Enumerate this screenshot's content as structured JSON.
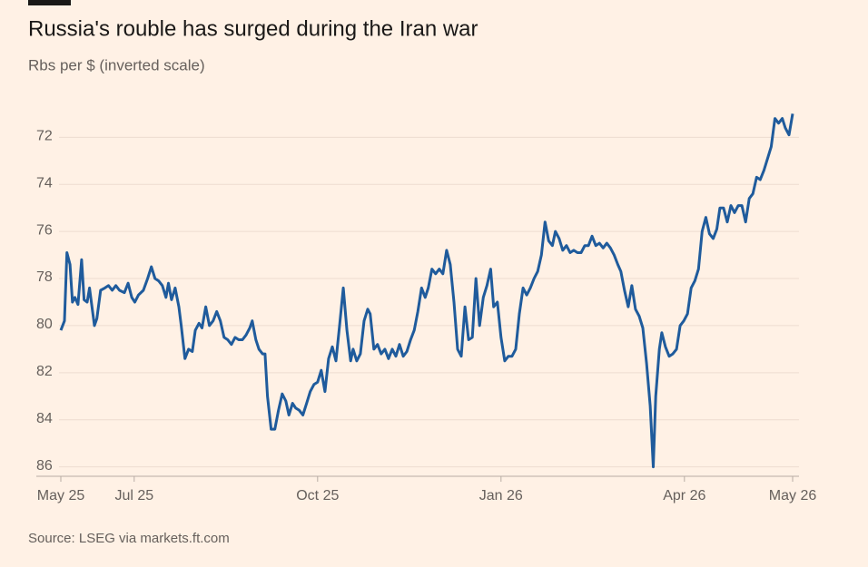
{
  "chart_data": {
    "type": "line",
    "title": "Russia's rouble has surged during the Iran war",
    "subtitle": "Rbs per $ (inverted scale)",
    "source": "Source: LSEG via markets.ft.com",
    "inverted_y": true,
    "ylim": [
      70.6,
      86.4
    ],
    "yticks": [
      72,
      74,
      76,
      78,
      80,
      82,
      84,
      86
    ],
    "xlim": [
      0.8,
      12.77
    ],
    "xticks": [
      {
        "value": 0.8,
        "label": "May 25"
      },
      {
        "value": 2,
        "label": "Jul 25"
      },
      {
        "value": 5,
        "label": "Oct 25"
      },
      {
        "value": 8,
        "label": "Jan 26"
      },
      {
        "value": 11,
        "label": "Apr 26"
      },
      {
        "value": 12.77,
        "label": "May 26"
      }
    ],
    "grid": true,
    "series": [
      {
        "name": "Rbs per $",
        "color": "#1f5b9c",
        "x": [
          0.8,
          0.86,
          0.9,
          0.95,
          0.99,
          1.03,
          1.08,
          1.14,
          1.18,
          1.23,
          1.27,
          1.35,
          1.39,
          1.45,
          1.52,
          1.58,
          1.64,
          1.7,
          1.76,
          1.84,
          1.9,
          1.96,
          2.01,
          2.07,
          2.15,
          2.22,
          2.28,
          2.34,
          2.4,
          2.46,
          2.52,
          2.56,
          2.61,
          2.67,
          2.73,
          2.77,
          2.83,
          2.89,
          2.95,
          3.0,
          3.06,
          3.11,
          3.17,
          3.23,
          3.29,
          3.35,
          3.41,
          3.47,
          3.53,
          3.59,
          3.65,
          3.71,
          3.77,
          3.83,
          3.89,
          3.93,
          3.99,
          4.04,
          4.1,
          4.14,
          4.18,
          4.24,
          4.3,
          4.36,
          4.42,
          4.48,
          4.53,
          4.59,
          4.64,
          4.7,
          4.76,
          4.82,
          4.88,
          4.94,
          5.0,
          5.06,
          5.12,
          5.18,
          5.24,
          5.3,
          5.36,
          5.42,
          5.48,
          5.54,
          5.58,
          5.64,
          5.7,
          5.76,
          5.82,
          5.86,
          5.92,
          5.98,
          6.04,
          6.1,
          6.16,
          6.22,
          6.28,
          6.34,
          6.4,
          6.46,
          6.52,
          6.58,
          6.64,
          6.7,
          6.76,
          6.81,
          6.87,
          6.93,
          6.99,
          7.05,
          7.11,
          7.17,
          7.23,
          7.29,
          7.35,
          7.41,
          7.47,
          7.53,
          7.59,
          7.65,
          7.71,
          7.77,
          7.83,
          7.88,
          7.94,
          8.0,
          8.06,
          8.12,
          8.18,
          8.24,
          8.3,
          8.36,
          8.42,
          8.48,
          8.54,
          8.6,
          8.66,
          8.72,
          8.78,
          8.84,
          8.89,
          8.95,
          9.01,
          9.07,
          9.13,
          9.19,
          9.25,
          9.31,
          9.37,
          9.43,
          9.49,
          9.55,
          9.61,
          9.67,
          9.73,
          9.79,
          9.85,
          9.91,
          9.96,
          10.02,
          10.08,
          10.14,
          10.2,
          10.26,
          10.32,
          10.38,
          10.44,
          10.49,
          10.53,
          10.59,
          10.63,
          10.69,
          10.75,
          10.81,
          10.87,
          10.93,
          10.99,
          11.05,
          11.11,
          11.17,
          11.23,
          11.29,
          11.35,
          11.41,
          11.47,
          11.53,
          11.58,
          11.64,
          11.7,
          11.76,
          11.82,
          11.88,
          11.94,
          12.0,
          12.06,
          12.12,
          12.18,
          12.24,
          12.3,
          12.36,
          12.42,
          12.48,
          12.54,
          12.6,
          12.65,
          12.71,
          12.77
        ],
        "values": [
          80.2,
          79.8,
          76.9,
          77.4,
          79.0,
          78.8,
          79.1,
          77.2,
          78.9,
          79.0,
          78.4,
          80.0,
          79.7,
          78.5,
          78.4,
          78.3,
          78.5,
          78.3,
          78.5,
          78.6,
          78.2,
          78.8,
          79.0,
          78.7,
          78.5,
          78.0,
          77.5,
          78.0,
          78.1,
          78.3,
          78.8,
          78.2,
          78.9,
          78.4,
          79.2,
          80.0,
          81.4,
          81.0,
          81.1,
          80.2,
          79.9,
          80.1,
          79.2,
          80.0,
          79.8,
          79.4,
          79.8,
          80.5,
          80.6,
          80.8,
          80.5,
          80.6,
          80.6,
          80.4,
          80.1,
          79.8,
          80.6,
          81.0,
          81.2,
          81.2,
          83.0,
          84.4,
          84.4,
          83.6,
          82.9,
          83.2,
          83.8,
          83.3,
          83.5,
          83.6,
          83.8,
          83.3,
          82.8,
          82.5,
          82.4,
          81.9,
          82.8,
          81.4,
          80.9,
          81.5,
          80.0,
          78.4,
          80.2,
          81.5,
          81.0,
          81.5,
          81.2,
          79.8,
          79.3,
          79.5,
          81.0,
          80.8,
          81.2,
          81.0,
          81.4,
          81.0,
          81.3,
          80.8,
          81.3,
          81.1,
          80.6,
          80.2,
          79.4,
          78.4,
          78.8,
          78.4,
          77.6,
          77.8,
          77.6,
          77.8,
          76.8,
          77.4,
          79.0,
          81.0,
          81.3,
          79.2,
          80.6,
          80.5,
          78.0,
          80.0,
          78.8,
          78.3,
          77.6,
          79.2,
          79.0,
          80.5,
          81.5,
          81.3,
          81.3,
          81.0,
          79.5,
          78.4,
          78.7,
          78.4,
          78.0,
          77.7,
          77.0,
          75.6,
          76.4,
          76.6,
          76.0,
          76.3,
          76.8,
          76.6,
          76.9,
          76.8,
          76.9,
          76.9,
          76.6,
          76.6,
          76.2,
          76.6,
          76.5,
          76.7,
          76.5,
          76.7,
          77.0,
          77.4,
          77.7,
          78.5,
          79.2,
          78.3,
          79.3,
          79.6,
          80.1,
          81.6,
          83.4,
          86.0,
          83.0,
          81.0,
          80.3,
          80.9,
          81.3,
          81.2,
          81.0,
          80.0,
          79.8,
          79.5,
          78.4,
          78.1,
          77.6,
          76.0,
          75.4,
          76.1,
          76.3,
          75.9,
          75.0,
          75.0,
          75.6,
          74.9,
          75.2,
          74.9,
          74.9,
          75.6,
          74.6,
          74.4,
          73.7,
          73.8,
          73.4,
          72.9,
          72.4,
          71.2,
          71.4,
          71.2,
          71.6,
          71.9,
          71.0
        ]
      }
    ]
  }
}
